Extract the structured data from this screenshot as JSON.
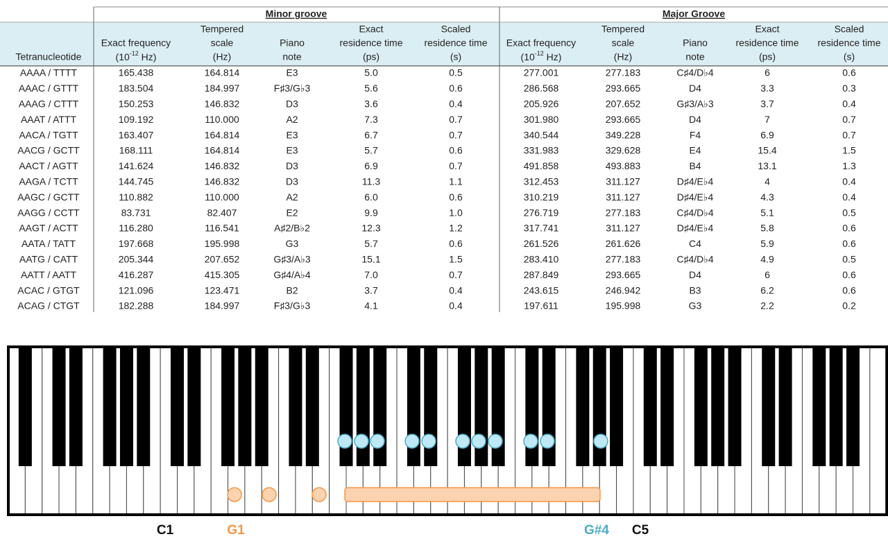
{
  "table": {
    "groups": [
      "Minor groove",
      "Major Groove"
    ],
    "columns": [
      {
        "lines": [
          "Tetranucleotide"
        ]
      },
      {
        "lines": [
          "Exact frequency",
          {
            "pre": "(10",
            "sup": "-12",
            "post": " Hz)"
          }
        ]
      },
      {
        "lines": [
          "Tempered",
          "scale",
          "(Hz)"
        ]
      },
      {
        "lines": [
          "Piano",
          "note"
        ]
      },
      {
        "lines": [
          "Exact",
          "residence time",
          "(ps)"
        ]
      },
      {
        "lines": [
          "Scaled",
          "residence time",
          "(s)"
        ]
      },
      {
        "lines": [
          "Exact frequency",
          {
            "pre": "(10",
            "sup": "-12",
            "post": " Hz)"
          }
        ]
      },
      {
        "lines": [
          "Tempered",
          "scale",
          "(Hz)"
        ]
      },
      {
        "lines": [
          "Piano",
          "note"
        ]
      },
      {
        "lines": [
          "Exact",
          "residence time",
          "(ps)"
        ]
      },
      {
        "lines": [
          "Scaled",
          "residence time",
          "(s)"
        ]
      }
    ],
    "rows": [
      [
        "AAAA / TTTT",
        "165.438",
        "164.814",
        "E3",
        "5.0",
        "0.5",
        "277.001",
        "277.183",
        "C♯4/D♭4",
        "6",
        "0.6"
      ],
      [
        "AAAC / GTTT",
        "183.504",
        "184.997",
        "F♯3/G♭3",
        "5.6",
        "0.6",
        "286.568",
        "293.665",
        "D4",
        "3.3",
        "0.3"
      ],
      [
        "AAAG / CTTT",
        "150.253",
        "146.832",
        "D3",
        "3.6",
        "0.4",
        "205.926",
        "207.652",
        "G♯3/A♭3",
        "3.7",
        "0.4"
      ],
      [
        "AAAT / ATTT",
        "109.192",
        "110.000",
        "A2",
        "7.3",
        "0.7",
        "301.980",
        "293.665",
        "D4",
        "7",
        "0.7"
      ],
      [
        "AACA / TGTT",
        "163.407",
        "164.814",
        "E3",
        "6.7",
        "0.7",
        "340.544",
        "349.228",
        "F4",
        "6.9",
        "0.7"
      ],
      [
        "AACG / GCTT",
        "168.111",
        "164.814",
        "E3",
        "5.7",
        "0.6",
        "331.983",
        "329.628",
        "E4",
        "15.4",
        "1.5"
      ],
      [
        "AACT / AGTT",
        "141.624",
        "146.832",
        "D3",
        "6.9",
        "0.7",
        "491.858",
        "493.883",
        "B4",
        "13.1",
        "1.3"
      ],
      [
        "AAGA / TCTT",
        "144.745",
        "146.832",
        "D3",
        "11.3",
        "1.1",
        "312.453",
        "311.127",
        "D♯4/E♭4",
        "4",
        "0.4"
      ],
      [
        "AAGC / GCTT",
        "110.882",
        "110.000",
        "A2",
        "6.0",
        "0.6",
        "310.219",
        "311.127",
        "D♯4/E♭4",
        "4.3",
        "0.4"
      ],
      [
        "AAGG / CCTT",
        "83.731",
        "82.407",
        "E2",
        "9.9",
        "1.0",
        "276.719",
        "277.183",
        "C♯4/D♭4",
        "5.1",
        "0.5"
      ],
      [
        "AAGT / ACTT",
        "116.280",
        "116.541",
        "A♯2/B♭2",
        "12.3",
        "1.2",
        "317.741",
        "311.127",
        "D♯4/E♭4",
        "5.8",
        "0.6"
      ],
      [
        "AATA / TATT",
        "197.668",
        "195.998",
        "G3",
        "5.7",
        "0.6",
        "261.526",
        "261.626",
        "C4",
        "5.9",
        "0.6"
      ],
      [
        "AATG / CATT",
        "205.344",
        "207.652",
        "G♯3/A♭3",
        "15.1",
        "1.5",
        "283.410",
        "277.183",
        "C♯4/D♭4",
        "4.9",
        "0.5"
      ],
      [
        "AATT / AATT",
        "416.287",
        "415.305",
        "G♯4/A♭4",
        "7.0",
        "0.7",
        "287.849",
        "293.665",
        "D4",
        "6",
        "0.6"
      ],
      [
        "ACAC / GTGT",
        "121.096",
        "123.471",
        "B2",
        "3.7",
        "0.4",
        "243.615",
        "246.942",
        "B3",
        "6.2",
        "0.6"
      ],
      [
        "ACAG / CTGT",
        "182.288",
        "184.997",
        "F♯3/G♭3",
        "4.1",
        "0.4",
        "197.611",
        "195.998",
        "G3",
        "2.2",
        "0.2"
      ]
    ]
  },
  "piano": {
    "labels": [
      "C1",
      "G1",
      "G#4",
      "C5"
    ]
  }
}
